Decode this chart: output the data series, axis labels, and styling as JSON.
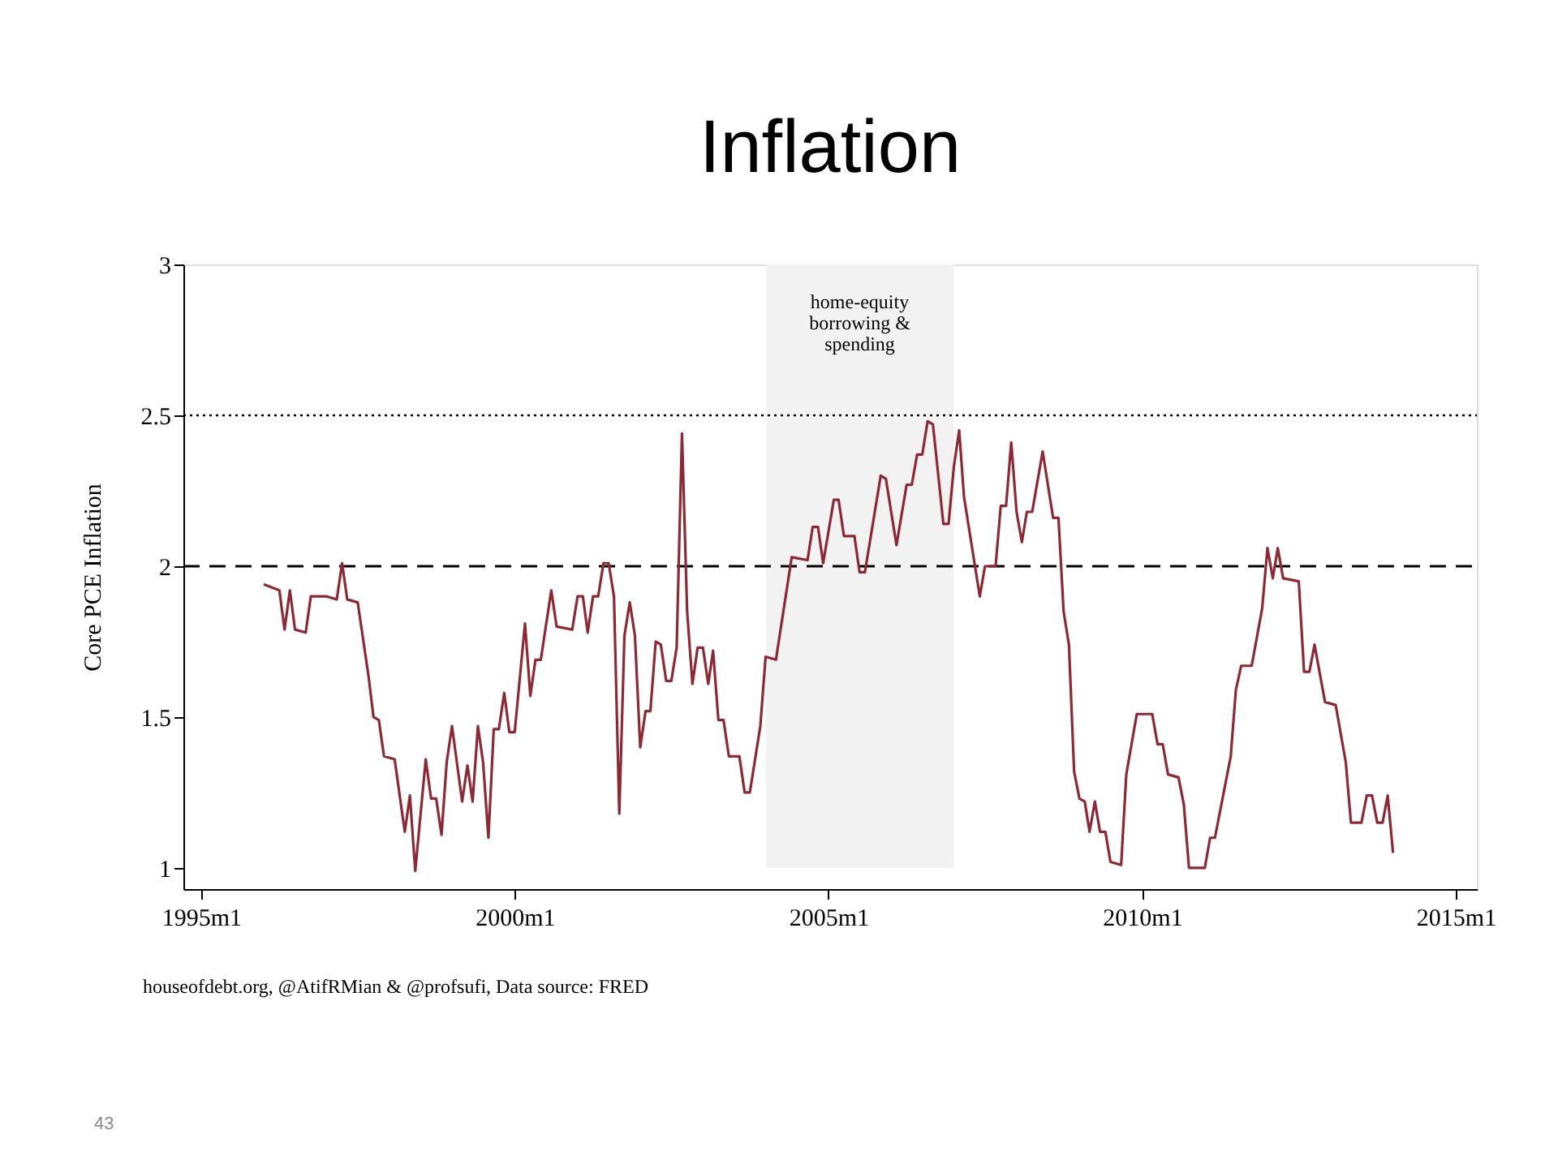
{
  "chart_data": {
    "type": "line",
    "title": "Inflation",
    "ylabel": "Core PCE Inflation",
    "xlim": [
      "1994-09-20",
      "2015-05-04"
    ],
    "ylim": [
      0.93,
      3.0
    ],
    "xticks": [
      {
        "value": "1995-01",
        "label": "1995m1"
      },
      {
        "value": "2000-01",
        "label": "2000m1"
      },
      {
        "value": "2005-01",
        "label": "2005m1"
      },
      {
        "value": "2010-01",
        "label": "2010m1"
      },
      {
        "value": "2015-01",
        "label": "2015m1"
      }
    ],
    "yticks": [
      1,
      1.5,
      2,
      2.5,
      3
    ],
    "grid": false,
    "ref_lines": [
      {
        "axis": "y",
        "value": 2.5,
        "line_style": "dotted",
        "color": "#000000"
      },
      {
        "axis": "y",
        "value": 2,
        "line_style": "dashed",
        "color": "#000000"
      }
    ],
    "bands": [
      {
        "axis": "x",
        "from": "2004-01",
        "to": "2007-01",
        "label": "home-equity borrowing & spending",
        "color": "#f2f2f2"
      }
    ],
    "annotations": [
      "houseofdebt.org, @AtifRMian & @profsufi, Data source: FRED",
      "43"
    ],
    "series": [
      {
        "color": "#8b2a35",
        "x": [
          "1996-01",
          "1996-04",
          "1996-05",
          "1996-06",
          "1996-07",
          "1996-09",
          "1996-10",
          "1997-01",
          "1997-03",
          "1997-04",
          "1997-05",
          "1997-07",
          "1997-09",
          "1997-10",
          "1997-11",
          "1997-12",
          "1998-02",
          "1998-04",
          "1998-05",
          "1998-06",
          "1998-08",
          "1998-09",
          "1998-10",
          "1998-11",
          "1998-12",
          "1999-01",
          "1999-03",
          "1999-04",
          "1999-05",
          "1999-06",
          "1999-07",
          "1999-08",
          "1999-09",
          "1999-10",
          "1999-11",
          "1999-12",
          "2000-01",
          "2000-03",
          "2000-04",
          "2000-05",
          "2000-06",
          "2000-08",
          "2000-09",
          "2000-12",
          "2001-01",
          "2001-02",
          "2001-03",
          "2001-04",
          "2001-05",
          "2001-06",
          "2001-07",
          "2001-08",
          "2001-09",
          "2001-10",
          "2001-11",
          "2001-12",
          "2002-01",
          "2002-02",
          "2002-03",
          "2002-04",
          "2002-05",
          "2002-06",
          "2002-07",
          "2002-08",
          "2002-09",
          "2002-10",
          "2002-11",
          "2002-12",
          "2003-01",
          "2003-02",
          "2003-03",
          "2003-04",
          "2003-05",
          "2003-06",
          "2003-08",
          "2003-09",
          "2003-10",
          "2003-12",
          "2004-01",
          "2004-03",
          "2004-06",
          "2004-09",
          "2004-10",
          "2004-11",
          "2004-12",
          "2005-02",
          "2005-03",
          "2005-04",
          "2005-06",
          "2005-07",
          "2005-08",
          "2005-11",
          "2005-12",
          "2006-02",
          "2006-04",
          "2006-05",
          "2006-06",
          "2006-07",
          "2006-08",
          "2006-09",
          "2006-11",
          "2006-12",
          "2007-01",
          "2007-02",
          "2007-03",
          "2007-06",
          "2007-07",
          "2007-09",
          "2007-10",
          "2007-11",
          "2007-12",
          "2008-01",
          "2008-02",
          "2008-03",
          "2008-04",
          "2008-06",
          "2008-08",
          "2008-09",
          "2008-10",
          "2008-11",
          "2008-12",
          "2009-01",
          "2009-02",
          "2009-03",
          "2009-04",
          "2009-05",
          "2009-06",
          "2009-07",
          "2009-09",
          "2009-10",
          "2009-12",
          "2010-03",
          "2010-04",
          "2010-05",
          "2010-06",
          "2010-08",
          "2010-09",
          "2010-10",
          "2011-01",
          "2011-02",
          "2011-03",
          "2011-06",
          "2011-07",
          "2011-08",
          "2011-10",
          "2011-12",
          "2012-01",
          "2012-02",
          "2012-03",
          "2012-04",
          "2012-07",
          "2012-08",
          "2012-09",
          "2012-10",
          "2012-12",
          "2013-02",
          "2013-04",
          "2013-05",
          "2013-07",
          "2013-08",
          "2013-09",
          "2013-10",
          "2013-11",
          "2013-12",
          "2014-01"
        ],
        "values": [
          1.94,
          1.92,
          1.79,
          1.92,
          1.79,
          1.78,
          1.9,
          1.9,
          1.89,
          2.01,
          1.89,
          1.88,
          1.64,
          1.5,
          1.49,
          1.37,
          1.36,
          1.12,
          1.24,
          0.99,
          1.36,
          1.23,
          1.23,
          1.11,
          1.35,
          1.47,
          1.22,
          1.34,
          1.22,
          1.47,
          1.35,
          1.1,
          1.46,
          1.46,
          1.58,
          1.45,
          1.45,
          1.81,
          1.57,
          1.69,
          1.69,
          1.92,
          1.8,
          1.79,
          1.9,
          1.9,
          1.78,
          1.9,
          1.9,
          2.01,
          2.01,
          1.9,
          1.18,
          1.77,
          1.88,
          1.77,
          1.4,
          1.52,
          1.52,
          1.75,
          1.74,
          1.62,
          1.62,
          1.73,
          2.44,
          1.85,
          1.61,
          1.73,
          1.73,
          1.61,
          1.72,
          1.49,
          1.49,
          1.37,
          1.37,
          1.25,
          1.25,
          1.47,
          1.7,
          1.69,
          2.03,
          2.02,
          2.13,
          2.13,
          2.01,
          2.22,
          2.22,
          2.1,
          2.1,
          1.98,
          1.98,
          2.3,
          2.29,
          2.07,
          2.27,
          2.27,
          2.37,
          2.37,
          2.48,
          2.47,
          2.14,
          2.14,
          2.33,
          2.45,
          2.23,
          1.9,
          2.0,
          2.0,
          2.2,
          2.2,
          2.41,
          2.18,
          2.08,
          2.18,
          2.18,
          2.38,
          2.16,
          2.16,
          1.85,
          1.74,
          1.32,
          1.23,
          1.22,
          1.12,
          1.22,
          1.12,
          1.12,
          1.02,
          1.01,
          1.31,
          1.51,
          1.51,
          1.41,
          1.41,
          1.31,
          1.3,
          1.21,
          1.0,
          1.0,
          1.1,
          1.1,
          1.37,
          1.59,
          1.67,
          1.67,
          1.86,
          2.06,
          1.96,
          2.06,
          1.96,
          1.95,
          1.65,
          1.65,
          1.74,
          1.55,
          1.54,
          1.35,
          1.15,
          1.15,
          1.24,
          1.24,
          1.15,
          1.15,
          1.24,
          1.05
        ]
      }
    ]
  }
}
